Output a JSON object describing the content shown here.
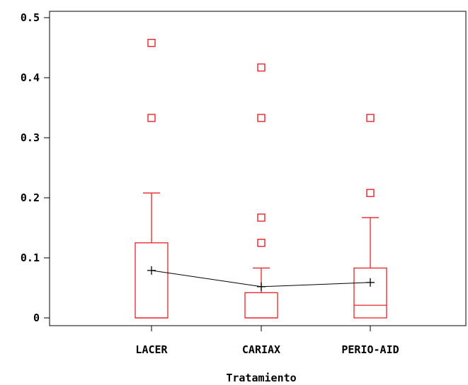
{
  "chart_data": {
    "type": "boxplot",
    "title": "",
    "xlabel": "Tratamiento",
    "ylabel": "",
    "ylim": [
      0,
      0.5
    ],
    "yticks": [
      "0",
      "0.1",
      "0.2",
      "0.3",
      "0.4",
      "0.5"
    ],
    "ytick_values": [
      0,
      0.1,
      0.2,
      0.3,
      0.4,
      0.5
    ],
    "categories": [
      "LACER",
      "CARIAX",
      "PERIO-AID"
    ],
    "boxes": [
      {
        "category": "LACER",
        "whisker_low": 0,
        "q1": 0,
        "median": 0,
        "q3": 0.125,
        "whisker_high": 0.208,
        "mean": 0.079,
        "outliers": [
          0.333,
          0.458
        ]
      },
      {
        "category": "CARIAX",
        "whisker_low": 0,
        "q1": 0,
        "median": 0,
        "q3": 0.042,
        "whisker_high": 0.083,
        "mean": 0.052,
        "outliers": [
          0.125,
          0.167,
          0.333,
          0.417
        ]
      },
      {
        "category": "PERIO-AID",
        "whisker_low": 0,
        "q1": 0,
        "median": 0.021,
        "q3": 0.083,
        "whisker_high": 0.167,
        "mean": 0.059,
        "outliers": [
          0.208,
          0.333
        ]
      }
    ],
    "colors": {
      "box": "#e8222a",
      "mean_line": "#000000",
      "axis": "#000000"
    },
    "grid": false,
    "legend": "none"
  }
}
